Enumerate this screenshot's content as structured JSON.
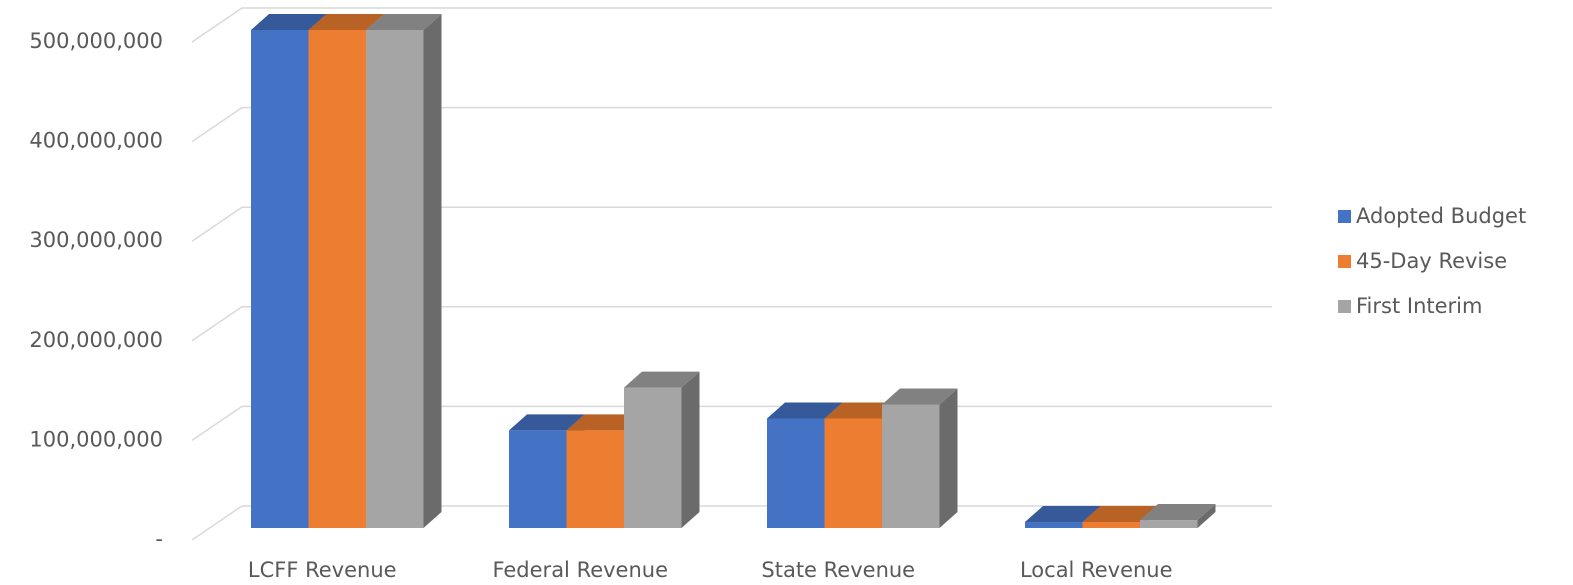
{
  "chart_data": {
    "type": "bar3d",
    "categories": [
      "LCFF Revenue",
      "Federal Revenue",
      "State Revenue",
      "Local Revenue"
    ],
    "series": [
      {
        "name": "Adopted Budget",
        "color": "#4472c4",
        "values": [
          500000000,
          98000000,
          110000000,
          6000000
        ]
      },
      {
        "name": "45-Day Revise",
        "color": "#ed7d31",
        "values": [
          500000000,
          98000000,
          110000000,
          6000000
        ]
      },
      {
        "name": "First Interim",
        "color": "#a5a5a5",
        "values": [
          500000000,
          141000000,
          124000000,
          8000000
        ]
      }
    ],
    "ylim": [
      0,
      500000000
    ],
    "yticks": [
      {
        "value": 0,
        "label": "-"
      },
      {
        "value": 100000000,
        "label": "100,000,000"
      },
      {
        "value": 200000000,
        "label": "200,000,000"
      },
      {
        "value": 300000000,
        "label": "300,000,000"
      },
      {
        "value": 400000000,
        "label": "400,000,000"
      },
      {
        "value": 500000000,
        "label": "500,000,000"
      }
    ],
    "grid": true,
    "legend": "right"
  }
}
